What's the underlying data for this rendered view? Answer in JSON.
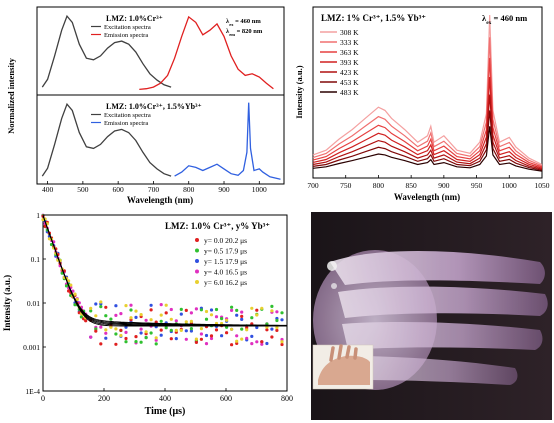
{
  "chart_data": [
    {
      "id": "a",
      "type": "line",
      "panels": [
        {
          "title": "LMZ: 1.0%Cr³⁺",
          "annot": [
            "λ",
            "ex",
            " = 460 nm",
            "λ",
            "em",
            " = 820 nm"
          ],
          "legend": [
            {
              "name": "Excitation spectra",
              "color": "#404040"
            },
            {
              "name": "Emission spectra",
              "color": "#e02020"
            }
          ],
          "series": [
            {
              "name": "Excitation spectra",
              "color": "#404040",
              "x": [
                385,
                400,
                420,
                440,
                455,
                470,
                490,
                510,
                530,
                550,
                570,
                590,
                610,
                630,
                650,
                670,
                690,
                710,
                730,
                750
              ],
              "y": [
                0.05,
                0.15,
                0.45,
                0.78,
                0.96,
                0.88,
                0.6,
                0.42,
                0.4,
                0.45,
                0.55,
                0.62,
                0.64,
                0.6,
                0.5,
                0.35,
                0.22,
                0.14,
                0.08,
                0.05
              ]
            },
            {
              "name": "Emission spectra",
              "color": "#e02020",
              "x": [
                660,
                680,
                700,
                720,
                740,
                760,
                780,
                800,
                820,
                840,
                860,
                880,
                900,
                920,
                940,
                960,
                980,
                1000,
                1020,
                1040
              ],
              "y": [
                0.02,
                0.03,
                0.05,
                0.1,
                0.2,
                0.42,
                0.7,
                0.95,
                0.88,
                0.72,
                0.78,
                0.86,
                0.7,
                0.45,
                0.28,
                0.2,
                0.22,
                0.18,
                0.1,
                0.03
              ]
            }
          ]
        },
        {
          "title": "LMZ: 1.0%Cr³⁺, 1.5%Yb³⁺",
          "legend": [
            {
              "name": "Excitation spectra",
              "color": "#404040"
            },
            {
              "name": "Emission spectra",
              "color": "#3060e0"
            }
          ],
          "series": [
            {
              "name": "Excitation spectra",
              "color": "#404040",
              "x": [
                385,
                400,
                420,
                440,
                455,
                470,
                490,
                510,
                530,
                550,
                570,
                590,
                610,
                630,
                650,
                670,
                690,
                710,
                730,
                750
              ],
              "y": [
                0.05,
                0.15,
                0.45,
                0.78,
                0.96,
                0.88,
                0.6,
                0.42,
                0.4,
                0.45,
                0.55,
                0.62,
                0.64,
                0.6,
                0.5,
                0.35,
                0.22,
                0.14,
                0.08,
                0.05
              ]
            },
            {
              "name": "Emission spectra",
              "color": "#3060e0",
              "x": [
                760,
                780,
                800,
                820,
                840,
                860,
                880,
                900,
                920,
                940,
                955,
                965,
                970,
                975,
                985,
                1000,
                1010,
                1030,
                1060
              ],
              "y": [
                0.05,
                0.1,
                0.18,
                0.16,
                0.12,
                0.16,
                0.2,
                0.14,
                0.08,
                0.06,
                0.12,
                0.35,
                0.98,
                0.4,
                0.12,
                0.14,
                0.1,
                0.04,
                0.01
              ]
            }
          ]
        }
      ],
      "xlabel": "Wavelength (nm)",
      "ylabel": "Normalized intensity",
      "xlim": [
        370,
        1070
      ],
      "xticks": [
        400,
        500,
        600,
        700,
        800,
        900,
        1000
      ]
    },
    {
      "id": "b",
      "type": "line",
      "title": "LMZ: 1% Cr³⁺, 1.5% Yb³⁺",
      "annot": [
        "λ",
        "ex",
        " = 460 nm"
      ],
      "xlabel": "Wavelength (nm)",
      "ylabel": "Intensity (a.u.)",
      "xlim": [
        700,
        1050
      ],
      "xticks": [
        700,
        750,
        800,
        850,
        900,
        950,
        1000,
        1050
      ],
      "x": [
        700,
        720,
        740,
        760,
        780,
        800,
        810,
        820,
        840,
        860,
        875,
        880,
        885,
        900,
        920,
        940,
        955,
        965,
        970,
        975,
        985,
        1000,
        1010,
        1030,
        1050
      ],
      "profile": [
        0.12,
        0.15,
        0.22,
        0.28,
        0.35,
        0.42,
        0.4,
        0.35,
        0.28,
        0.2,
        0.24,
        0.3,
        0.2,
        0.24,
        0.15,
        0.13,
        0.2,
        0.38,
        1.0,
        0.4,
        0.2,
        0.23,
        0.17,
        0.1,
        0.06
      ],
      "series": [
        {
          "name": "308 K",
          "scale": 1.0,
          "color": "#f4a0a0"
        },
        {
          "name": "333 K",
          "scale": 0.86,
          "color": "#f07070"
        },
        {
          "name": "363 K",
          "scale": 0.73,
          "color": "#e64040"
        },
        {
          "name": "393 K",
          "scale": 0.61,
          "color": "#d02020"
        },
        {
          "name": "423 K",
          "scale": 0.5,
          "color": "#b01010"
        },
        {
          "name": "453 K",
          "scale": 0.4,
          "color": "#800808"
        },
        {
          "name": "483 K",
          "scale": 0.3,
          "color": "#2a0000"
        }
      ]
    },
    {
      "id": "c",
      "type": "scatter",
      "title": "LMZ: 1.0% Cr³⁺, y% Yb³⁺",
      "xlabel": "Time (μs)",
      "ylabel": "Intensity (a.u.)",
      "yscale": "log",
      "xlim": [
        0,
        800
      ],
      "ylim": [
        0.0001,
        1
      ],
      "xticks": [
        0,
        200,
        400,
        600,
        800
      ],
      "ytick_labels": [
        "1E-4",
        "0.001",
        "0.01",
        "0.1",
        "1"
      ],
      "series": [
        {
          "name": "y= 0.0  20.2 μs",
          "color": "#e02020"
        },
        {
          "name": "y= 0.5  17.9 μs",
          "color": "#30c030"
        },
        {
          "name": "y= 1.5  17.9 μs",
          "color": "#3050e0"
        },
        {
          "name": "y= 4.0  16.5 μs",
          "color": "#e030c0"
        },
        {
          "name": "y= 6.0  16.2 μs",
          "color": "#e8d030"
        }
      ]
    }
  ],
  "colors": {
    "frame": "#000000",
    "fit": "#000000"
  }
}
